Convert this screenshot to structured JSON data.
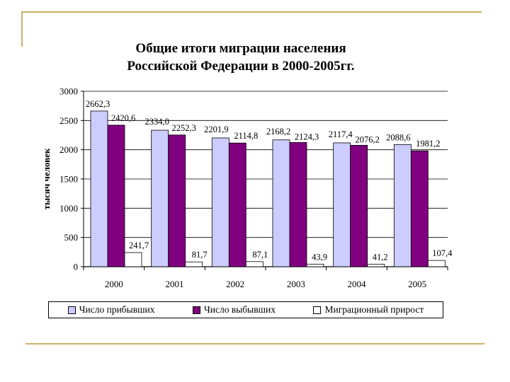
{
  "chart_data": {
    "type": "bar",
    "title_line1": "Общие итоги миграции населения",
    "title_line2": "Российской Федерации в 2000-2005гг.",
    "ylabel": "тысяч человек",
    "xlabel": "",
    "ylim": [
      0,
      3000
    ],
    "yticks": [
      "0",
      "500",
      "1000",
      "1500",
      "2000",
      "2500",
      "3000"
    ],
    "ytick_values": [
      0,
      500,
      1000,
      1500,
      2000,
      2500,
      3000
    ],
    "grid": true,
    "legend_position": "bottom",
    "categories": [
      "2000",
      "2001",
      "2002",
      "2003",
      "2004",
      "2005"
    ],
    "series": [
      {
        "name": "Число прибывших",
        "color": "#ccccff",
        "values": [
          2662.3,
          2334.0,
          2201.9,
          2168.2,
          2117.4,
          2088.6
        ],
        "labels": [
          "2662,3",
          "2334,0",
          "2201,9",
          "2168,2",
          "2117,4",
          "2088,6"
        ]
      },
      {
        "name": "Число выбывших",
        "color": "#800080",
        "values": [
          2420.6,
          2252.3,
          2114.8,
          2124.3,
          2076.2,
          1981.2
        ],
        "labels": [
          "2420,6",
          "2252,3",
          "2114,8",
          "2124,3",
          "2076,2",
          "1981,2"
        ]
      },
      {
        "name": "Миграционный прирост",
        "color": "#ffffff",
        "values": [
          241.7,
          81.7,
          87.1,
          43.9,
          41.2,
          107.4
        ],
        "labels": [
          "241,7",
          "81,7",
          "87,1",
          "43,9",
          "41,2",
          "107,4"
        ]
      }
    ]
  }
}
